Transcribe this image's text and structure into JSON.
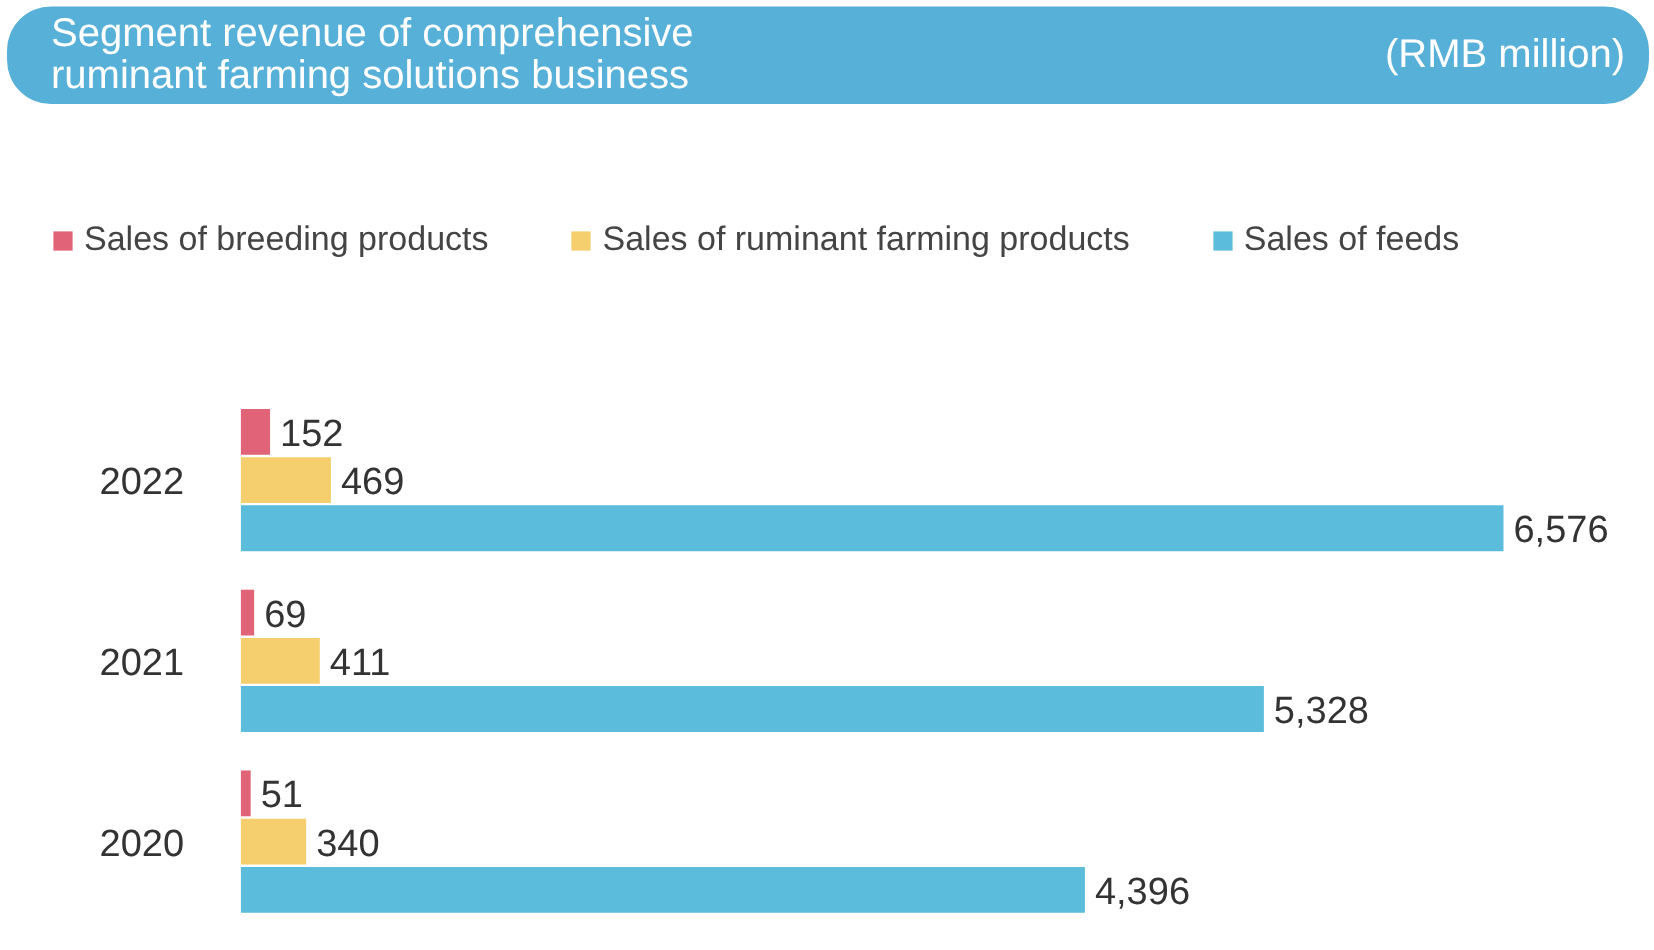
{
  "chart_data": {
    "type": "bar",
    "orientation": "horizontal",
    "title": "Segment revenue of comprehensive\nruminant farming solutions business",
    "subtitle": "(RMB million)",
    "categories": [
      "2022",
      "2021",
      "2020"
    ],
    "series": [
      {
        "name": "Sales of breeding products",
        "color": "#e06377",
        "values": [
          152,
          69,
          51
        ],
        "value_labels": [
          "152",
          "69",
          "51"
        ]
      },
      {
        "name": "Sales of ruminant farming products",
        "color": "#f5cf6e",
        "values": [
          469,
          411,
          340
        ],
        "value_labels": [
          "469",
          "411",
          "340"
        ]
      },
      {
        "name": "Sales of feeds",
        "color": "#5bbcdc",
        "values": [
          6576,
          5328,
          4396
        ],
        "value_labels": [
          "6,576",
          "5,328",
          "4,396"
        ]
      }
    ],
    "legend": "top",
    "grid": false
  }
}
